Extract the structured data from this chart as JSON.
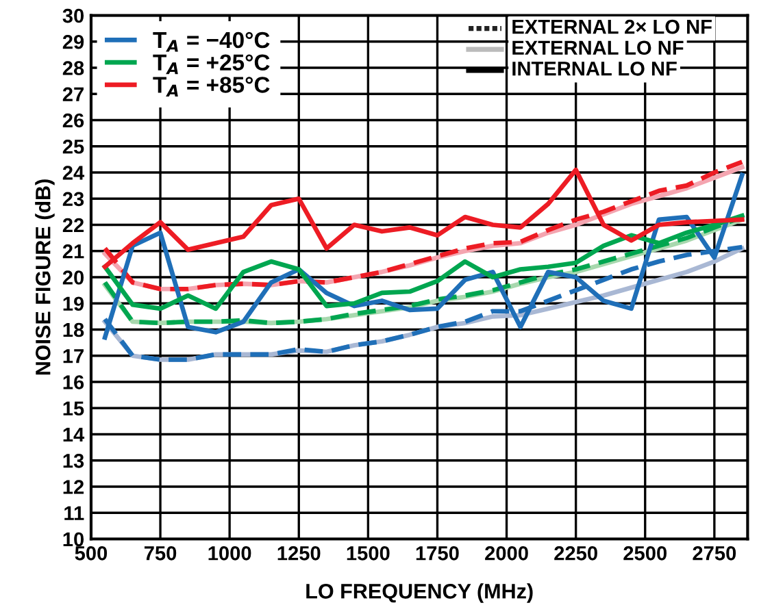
{
  "chart_data": {
    "type": "line",
    "xlabel": "LO FREQUENCY (MHz)",
    "ylabel": "NOISE FIGURE (dB)",
    "x": [
      550,
      650,
      750,
      850,
      950,
      1050,
      1150,
      1250,
      1350,
      1450,
      1550,
      1650,
      1750,
      1850,
      1950,
      2050,
      2150,
      2250,
      2350,
      2450,
      2550,
      2650,
      2750,
      2850
    ],
    "xlim": [
      500,
      2870
    ],
    "xticks": [
      500,
      750,
      1000,
      1250,
      1500,
      1750,
      2000,
      2250,
      2500,
      2750
    ],
    "ylim": [
      10,
      30
    ],
    "yticks": [
      10,
      11,
      12,
      13,
      14,
      15,
      16,
      17,
      18,
      19,
      20,
      21,
      22,
      23,
      24,
      25,
      26,
      27,
      28,
      29,
      30
    ],
    "grid": true,
    "legend": "top left",
    "marker": "none",
    "annotations": [
      "EXTERNAL 2× LO NF",
      "EXTERNAL LO NF",
      "INTERNAL LO NF"
    ],
    "series": [
      {
        "color": "#a9b8d4",
        "line_style": "solid",
        "values": [
          18.3,
          17.0,
          16.85,
          16.85,
          17.05,
          17.05,
          17.05,
          17.2,
          17.15,
          17.4,
          17.55,
          17.8,
          18.1,
          18.25,
          18.5,
          18.55,
          18.8,
          19.05,
          19.3,
          19.6,
          19.9,
          20.2,
          20.6,
          21.1
        ]
      },
      {
        "color": "#a8d8ae",
        "line_style": "solid",
        "values": [
          19.7,
          18.3,
          18.25,
          18.3,
          18.3,
          18.3,
          18.25,
          18.3,
          18.4,
          18.55,
          18.7,
          18.85,
          19.1,
          19.25,
          19.45,
          19.75,
          20.0,
          20.2,
          20.5,
          20.8,
          21.1,
          21.4,
          21.8,
          22.2
        ]
      },
      {
        "color": "#f4a5b0",
        "line_style": "solid",
        "values": [
          20.9,
          19.8,
          19.55,
          19.55,
          19.7,
          19.75,
          19.7,
          19.85,
          19.8,
          20.0,
          20.2,
          20.45,
          20.75,
          21.0,
          21.2,
          21.3,
          21.7,
          22.0,
          22.4,
          22.8,
          23.1,
          23.4,
          23.8,
          24.2
        ]
      },
      {
        "color": "#1f6fb8",
        "line_style": "dashed",
        "values": [
          18.4,
          17.0,
          16.85,
          16.85,
          17.05,
          17.05,
          17.05,
          17.25,
          17.15,
          17.4,
          17.55,
          17.8,
          18.1,
          18.3,
          18.7,
          18.7,
          19.1,
          19.5,
          19.9,
          20.3,
          20.6,
          20.85,
          21.0,
          21.15
        ]
      },
      {
        "color": "#00a650",
        "line_style": "dashed",
        "values": [
          19.8,
          18.3,
          18.25,
          18.3,
          18.3,
          18.35,
          18.25,
          18.3,
          18.4,
          18.6,
          18.75,
          18.9,
          19.15,
          19.3,
          19.5,
          19.8,
          20.1,
          20.3,
          20.6,
          20.9,
          21.2,
          21.5,
          21.9,
          22.3
        ]
      },
      {
        "color": "#ed1c24",
        "line_style": "dashed",
        "values": [
          21.1,
          19.8,
          19.55,
          19.55,
          19.7,
          19.75,
          19.7,
          19.85,
          19.8,
          20.0,
          20.2,
          20.5,
          20.8,
          21.1,
          21.3,
          21.35,
          21.8,
          22.2,
          22.5,
          22.9,
          23.3,
          23.5,
          24.0,
          24.4
        ]
      },
      {
        "name": "T$_{A}$ = −40°C",
        "color": "#1f6fb8",
        "line_style": "solid",
        "values": [
          17.7,
          21.2,
          21.7,
          18.1,
          17.9,
          18.3,
          19.8,
          20.3,
          19.4,
          18.9,
          19.1,
          18.75,
          18.8,
          19.9,
          20.2,
          18.1,
          20.2,
          20.0,
          19.1,
          18.8,
          22.2,
          22.3,
          20.75,
          23.9
        ]
      },
      {
        "name": "T$_{A}$ = +25°C",
        "color": "#00a650",
        "line_style": "solid",
        "values": [
          20.4,
          18.95,
          18.8,
          19.3,
          18.8,
          20.2,
          20.6,
          20.3,
          18.9,
          19.0,
          19.4,
          19.45,
          19.85,
          20.6,
          20.0,
          20.3,
          20.4,
          20.55,
          21.2,
          21.6,
          21.3,
          21.7,
          22.0,
          22.35
        ]
      },
      {
        "name": "T$_{A}$ = +85°C",
        "color": "#ed1c24",
        "line_style": "solid",
        "values": [
          20.4,
          21.3,
          22.1,
          21.05,
          21.3,
          21.55,
          22.75,
          23.0,
          21.1,
          22.0,
          21.75,
          21.9,
          21.6,
          22.3,
          22.0,
          21.9,
          22.8,
          24.1,
          22.0,
          21.4,
          22.0,
          22.1,
          22.15,
          22.2
        ]
      }
    ]
  }
}
